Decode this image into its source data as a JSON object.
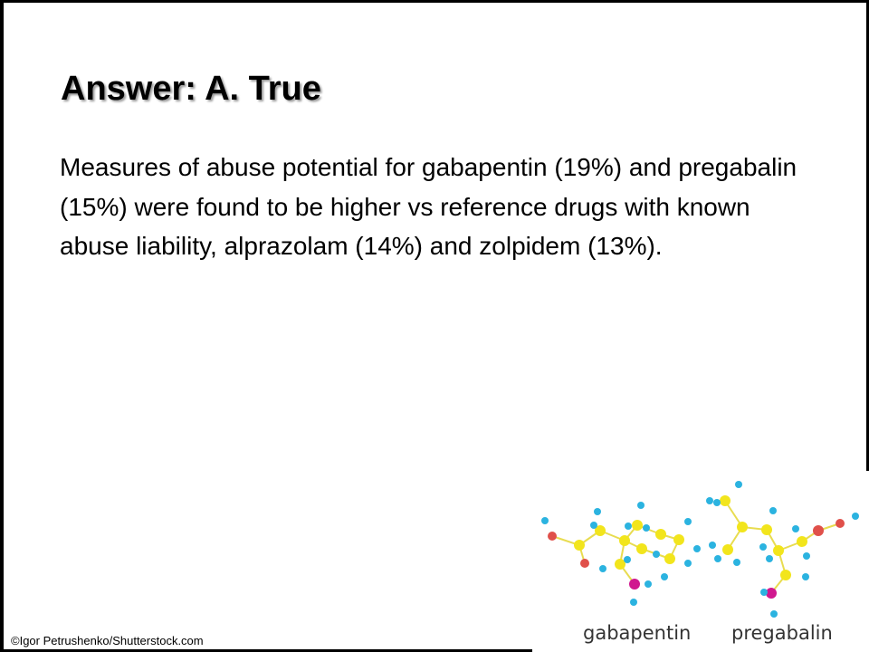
{
  "slide": {
    "title": "Answer: A. True",
    "body": "Measures of abuse potential for gabapentin (19%) and pregabalin (15%) were found to be higher vs reference drugs with known abuse liability, alprazolam (14%) and zolpidem (13%).",
    "credit": "©Igor Petrushenko/Shutterstock.com"
  },
  "figure": {
    "labels": [
      "gabapentin",
      "pregabalin"
    ],
    "atom_colors": {
      "carbon": "#f2e51c",
      "hydrogen": "#2bb3e0",
      "oxygen": "#e0504a",
      "nitrogen": "#d0188f"
    }
  }
}
